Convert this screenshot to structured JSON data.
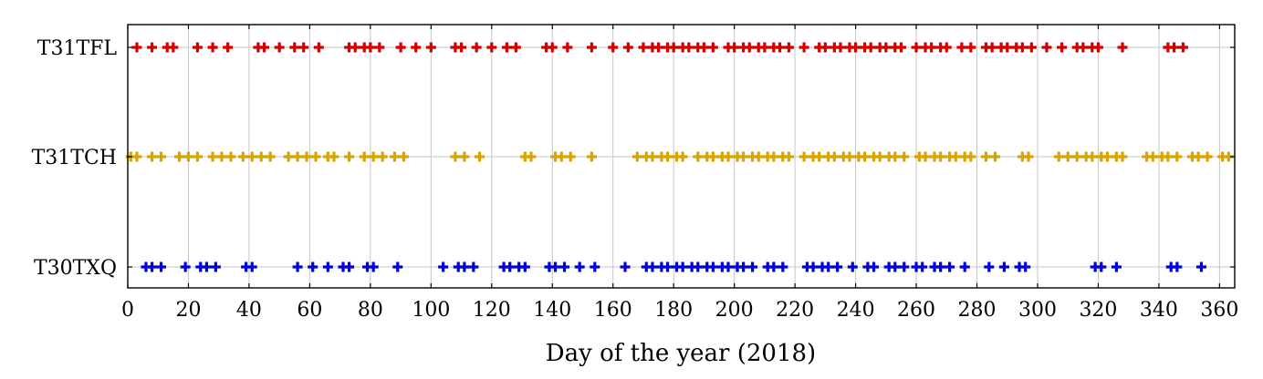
{
  "chart_data": {
    "type": "scatter",
    "title": "",
    "xlabel": "Day of the year (2018)",
    "ylabel": "",
    "xlim": [
      0,
      365
    ],
    "xticks": [
      0,
      20,
      40,
      60,
      80,
      100,
      120,
      140,
      160,
      180,
      200,
      220,
      240,
      260,
      280,
      300,
      320,
      340,
      360
    ],
    "categories": [
      "T31TFL",
      "T31TCH",
      "T30TXQ"
    ],
    "grid": true,
    "marker": "plus",
    "series": [
      {
        "category": "T31TFL",
        "color": "#d40000",
        "x": [
          3,
          8,
          13,
          15,
          23,
          28,
          33,
          43,
          45,
          50,
          55,
          58,
          63,
          73,
          75,
          78,
          80,
          83,
          90,
          95,
          100,
          108,
          110,
          115,
          120,
          125,
          128,
          138,
          140,
          145,
          153,
          160,
          165,
          170,
          173,
          175,
          178,
          180,
          183,
          185,
          188,
          190,
          193,
          198,
          200,
          203,
          205,
          208,
          210,
          213,
          215,
          218,
          223,
          228,
          230,
          233,
          235,
          238,
          240,
          243,
          245,
          248,
          250,
          253,
          255,
          260,
          263,
          265,
          268,
          270,
          275,
          278,
          283,
          285,
          288,
          290,
          293,
          295,
          298,
          303,
          308,
          313,
          315,
          318,
          320,
          328,
          343,
          345,
          348
        ]
      },
      {
        "category": "T31TCH",
        "color": "#d9a400",
        "x": [
          1,
          3,
          8,
          11,
          17,
          20,
          23,
          28,
          31,
          34,
          38,
          41,
          44,
          47,
          53,
          56,
          59,
          62,
          66,
          68,
          73,
          78,
          81,
          84,
          88,
          91,
          108,
          111,
          116,
          131,
          133,
          141,
          143,
          146,
          153,
          168,
          171,
          173,
          176,
          178,
          181,
          183,
          188,
          191,
          193,
          196,
          198,
          201,
          203,
          206,
          208,
          211,
          213,
          216,
          218,
          223,
          226,
          228,
          231,
          233,
          236,
          238,
          241,
          243,
          246,
          248,
          251,
          253,
          256,
          261,
          263,
          266,
          268,
          271,
          273,
          276,
          278,
          283,
          286,
          295,
          297,
          307,
          310,
          313,
          316,
          318,
          321,
          323,
          326,
          328,
          336,
          338,
          341,
          343,
          346,
          351,
          353,
          356,
          361,
          363
        ]
      },
      {
        "category": "T30TXQ",
        "color": "#0000dd",
        "x": [
          6,
          8,
          11,
          19,
          24,
          26,
          29,
          39,
          41,
          56,
          61,
          66,
          71,
          73,
          79,
          81,
          89,
          104,
          109,
          111,
          114,
          124,
          126,
          129,
          131,
          139,
          141,
          144,
          149,
          154,
          164,
          171,
          173,
          176,
          178,
          181,
          183,
          186,
          188,
          191,
          193,
          196,
          198,
          201,
          203,
          206,
          211,
          213,
          216,
          224,
          226,
          229,
          231,
          234,
          239,
          244,
          246,
          251,
          253,
          256,
          260,
          262,
          266,
          268,
          271,
          276,
          284,
          289,
          294,
          296,
          319,
          321,
          326,
          344,
          346,
          354
        ]
      }
    ]
  }
}
